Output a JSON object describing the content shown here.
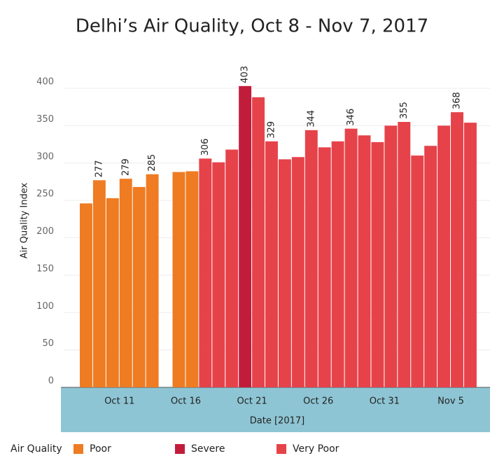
{
  "chart_data": {
    "type": "bar",
    "title": "Delhi’s Air Quality, Oct 8 - Nov 7, 2017",
    "x_label": "Date [2017]",
    "y_label": "Air Quality Index",
    "legend_title": "Air Quality",
    "categories": [
      null,
      null,
      null,
      "Oct 11",
      null,
      null,
      null,
      null,
      "Oct 16",
      null,
      null,
      null,
      null,
      "Oct 21",
      null,
      null,
      null,
      null,
      "Oct 26",
      null,
      null,
      null,
      null,
      "Oct 31",
      null,
      null,
      null,
      null,
      "Nov 5",
      null
    ],
    "series": [
      {
        "name": "Poor",
        "color": "#ef7b22",
        "values": [
          246,
          277,
          253,
          279,
          268,
          285,
          null,
          288,
          289,
          null,
          null,
          null,
          null,
          null,
          null,
          null,
          null,
          null,
          null,
          null,
          null,
          null,
          null,
          null,
          null,
          null,
          null,
          null,
          null,
          null
        ],
        "value_labels": [
          null,
          277,
          null,
          279,
          null,
          285,
          null,
          null,
          null,
          null,
          null,
          null,
          null,
          null,
          null,
          null,
          null,
          null,
          null,
          null,
          null,
          null,
          null,
          null,
          null,
          null,
          null,
          null,
          null,
          null
        ]
      },
      {
        "name": "Severe",
        "color": "#c11d3b",
        "values": [
          null,
          null,
          null,
          null,
          null,
          null,
          null,
          null,
          null,
          null,
          null,
          null,
          403,
          null,
          null,
          null,
          null,
          null,
          null,
          null,
          null,
          null,
          null,
          null,
          null,
          null,
          null,
          null,
          null,
          null
        ],
        "value_labels": [
          null,
          null,
          null,
          null,
          null,
          null,
          null,
          null,
          null,
          null,
          null,
          null,
          403,
          null,
          null,
          null,
          null,
          null,
          null,
          null,
          null,
          null,
          null,
          null,
          null,
          null,
          null,
          null,
          null,
          null
        ]
      },
      {
        "name": "Very Poor",
        "color": "#e6424a",
        "values": [
          null,
          null,
          null,
          null,
          null,
          null,
          null,
          null,
          null,
          306,
          301,
          318,
          null,
          388,
          329,
          305,
          308,
          344,
          321,
          329,
          346,
          337,
          328,
          350,
          355,
          310,
          323,
          350,
          368,
          354
        ],
        "value_labels": [
          null,
          null,
          null,
          null,
          null,
          null,
          null,
          null,
          null,
          306,
          null,
          null,
          null,
          null,
          329,
          null,
          null,
          344,
          null,
          null,
          346,
          null,
          null,
          null,
          355,
          null,
          null,
          null,
          368,
          null
        ]
      }
    ],
    "ylim": [
      0,
      430
    ],
    "yticks": [
      0,
      50,
      100,
      150,
      200,
      250,
      300,
      350,
      400
    ],
    "grid": true,
    "legend": "bottom-left"
  }
}
